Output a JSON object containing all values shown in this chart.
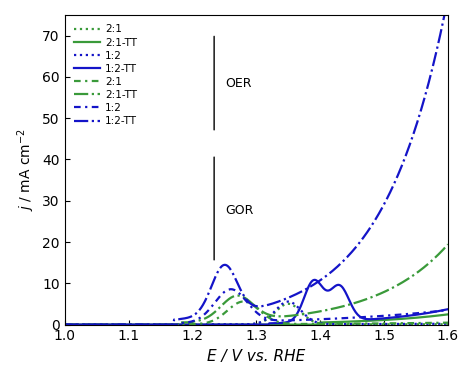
{
  "xlim": [
    1.0,
    1.6
  ],
  "ylim": [
    0,
    75
  ],
  "xlabel": "E / V vs. RHE",
  "ylabel": "j / mA cm⁻²",
  "xticks": [
    1.0,
    1.1,
    1.2,
    1.3,
    1.4,
    1.5,
    1.6
  ],
  "yticks": [
    0,
    10,
    20,
    30,
    40,
    50,
    60,
    70
  ],
  "oer_label": "OER",
  "gor_label": "GOR",
  "green_color": "#3a9a3a",
  "blue_color": "#1414c8",
  "green_light": "#7ec87e",
  "blue_light": "#6464d0"
}
